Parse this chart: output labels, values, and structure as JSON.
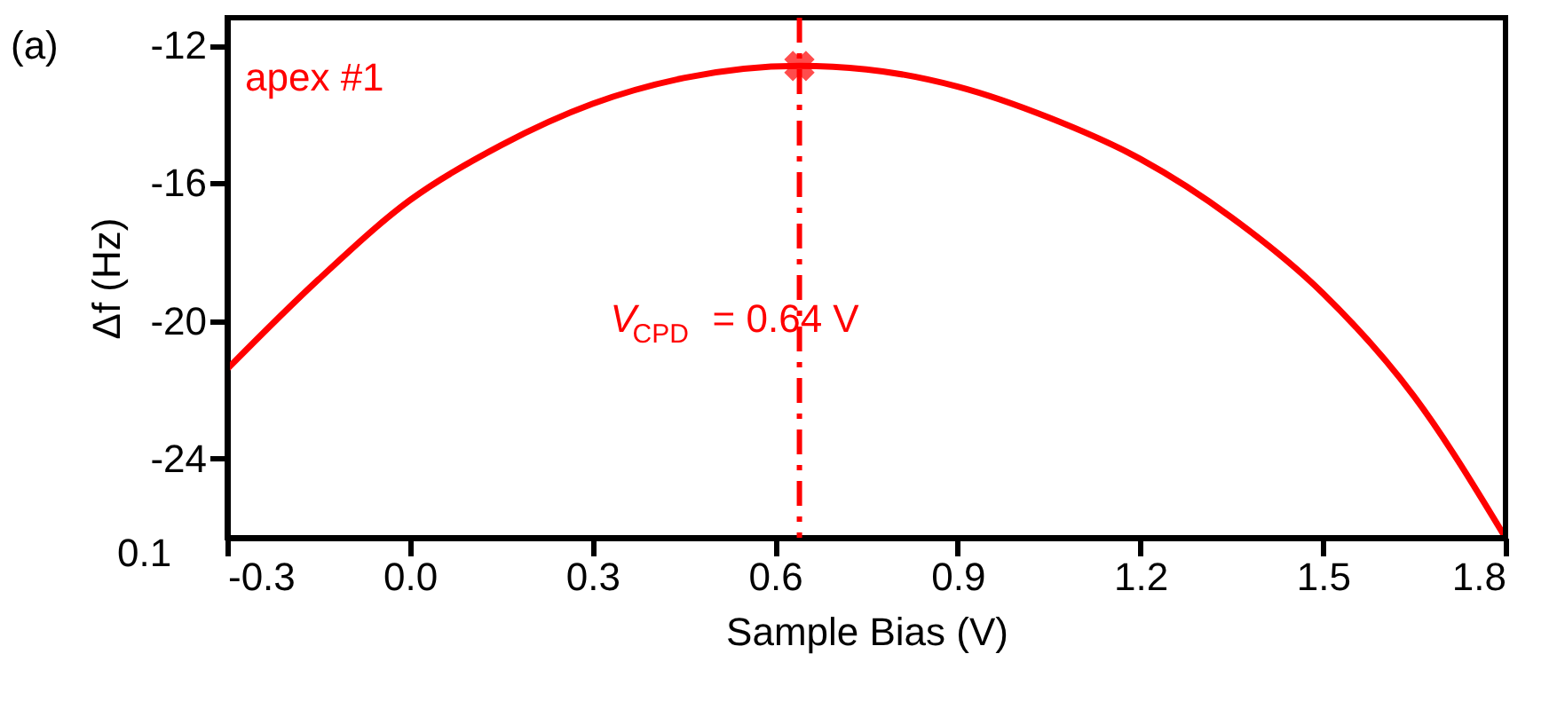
{
  "chart_data": {
    "type": "line",
    "xlabel": "Sample Bias (V)",
    "ylabel": "Δf (Hz)",
    "xlim": [
      -0.3,
      1.8
    ],
    "xticks": [
      {
        "value": -0.3,
        "label": "-0.3"
      },
      {
        "value": 0,
        "label": "0.0"
      },
      0.3,
      0.6,
      0.9,
      1.2,
      1.5,
      1.8
    ],
    "ylim": [
      -26.3,
      -11.2
    ],
    "yticks": [
      -12,
      -16,
      -20,
      -24
    ],
    "series": [
      {
        "color": "#ff0000",
        "line_style": "solid",
        "x": [
          -0.3,
          -0.15,
          0.0,
          0.15,
          0.3,
          0.45,
          0.64,
          0.75,
          0.9,
          1.05,
          1.2,
          1.35,
          1.5,
          1.65,
          1.8
        ],
        "values": [
          -21.4,
          -18.8,
          -16.5,
          -14.9,
          -13.7,
          -12.95,
          -12.6,
          -12.7,
          -13.2,
          -14.1,
          -15.3,
          -17.0,
          -19.2,
          -22.2,
          -26.3
        ]
      },
      {
        "type": "scatter",
        "color": "#ff0000",
        "marker": "cross",
        "x": [
          0.64
        ],
        "values": [
          -12.6
        ]
      }
    ],
    "ref_lines": [
      {
        "axis": "x",
        "value": 0.64,
        "label": "V$_{CPD}$ = 0.64 V",
        "color": "#ff0000",
        "line_style": "dashdot"
      }
    ],
    "annotations": [
      "(a)",
      "apex #1",
      "0.1"
    ],
    "grid": false
  }
}
